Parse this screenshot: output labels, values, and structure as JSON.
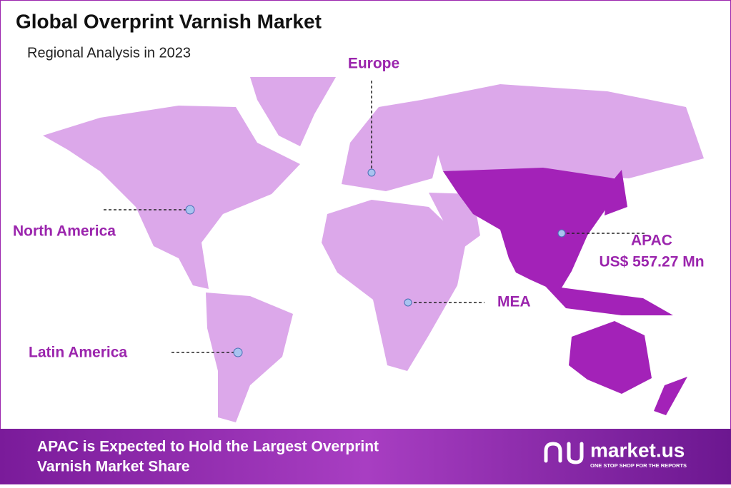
{
  "header": {
    "title": "Global Overprint Varnish Market",
    "subtitle": "Regional Analysis in 2023"
  },
  "regions": [
    {
      "label": "Europe"
    },
    {
      "label": "North America"
    },
    {
      "label": "APAC",
      "value": "US$ 557.27 Mn"
    },
    {
      "label": "MEA"
    },
    {
      "label": "Latin America"
    }
  ],
  "footer": {
    "text_line1": "APAC is Expected to Hold the Largest Overprint",
    "text_line2": "Varnish Market Share",
    "logo": "market.us",
    "tagline": "ONE STOP SHOP FOR THE REPORTS"
  }
}
